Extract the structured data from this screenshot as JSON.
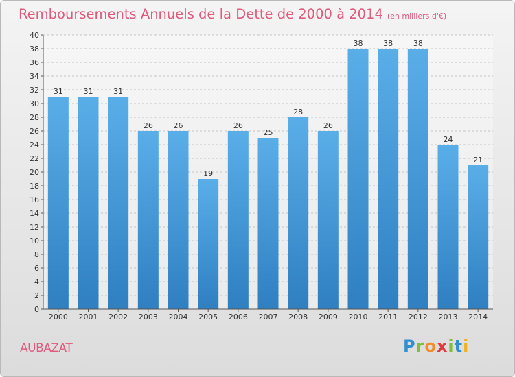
{
  "chart_data": {
    "type": "bar",
    "title": "Remboursements Annuels de la Dette de 2000 à 2014",
    "unit_label": "(en milliers d'€)",
    "categories": [
      "2000",
      "2001",
      "2002",
      "2003",
      "2004",
      "2005",
      "2006",
      "2007",
      "2008",
      "2009",
      "2010",
      "2011",
      "2012",
      "2013",
      "2014"
    ],
    "values": [
      31,
      31,
      31,
      26,
      26,
      19,
      26,
      25,
      28,
      26,
      38,
      38,
      38,
      24,
      21
    ],
    "ylim": [
      0,
      40
    ],
    "yticks": [
      0,
      2,
      4,
      6,
      8,
      10,
      12,
      14,
      16,
      18,
      20,
      22,
      24,
      26,
      28,
      30,
      32,
      34,
      36,
      38,
      40
    ],
    "xlabel": "",
    "ylabel": "",
    "grid": true
  },
  "commune": "AUBAZAT",
  "logo": {
    "letters": [
      "P",
      "r",
      "o",
      "x",
      "i",
      "t",
      "i"
    ],
    "colors": [
      "#2f8fd0",
      "#7fbf3a",
      "#f08c2a",
      "#e03a3a",
      "#7fbf3a",
      "#2f8fd0",
      "#f0b020"
    ]
  },
  "colors": {
    "bar_top": "#5aaee8",
    "bar_bottom": "#2f7fc1",
    "title": "#e05a7b"
  }
}
